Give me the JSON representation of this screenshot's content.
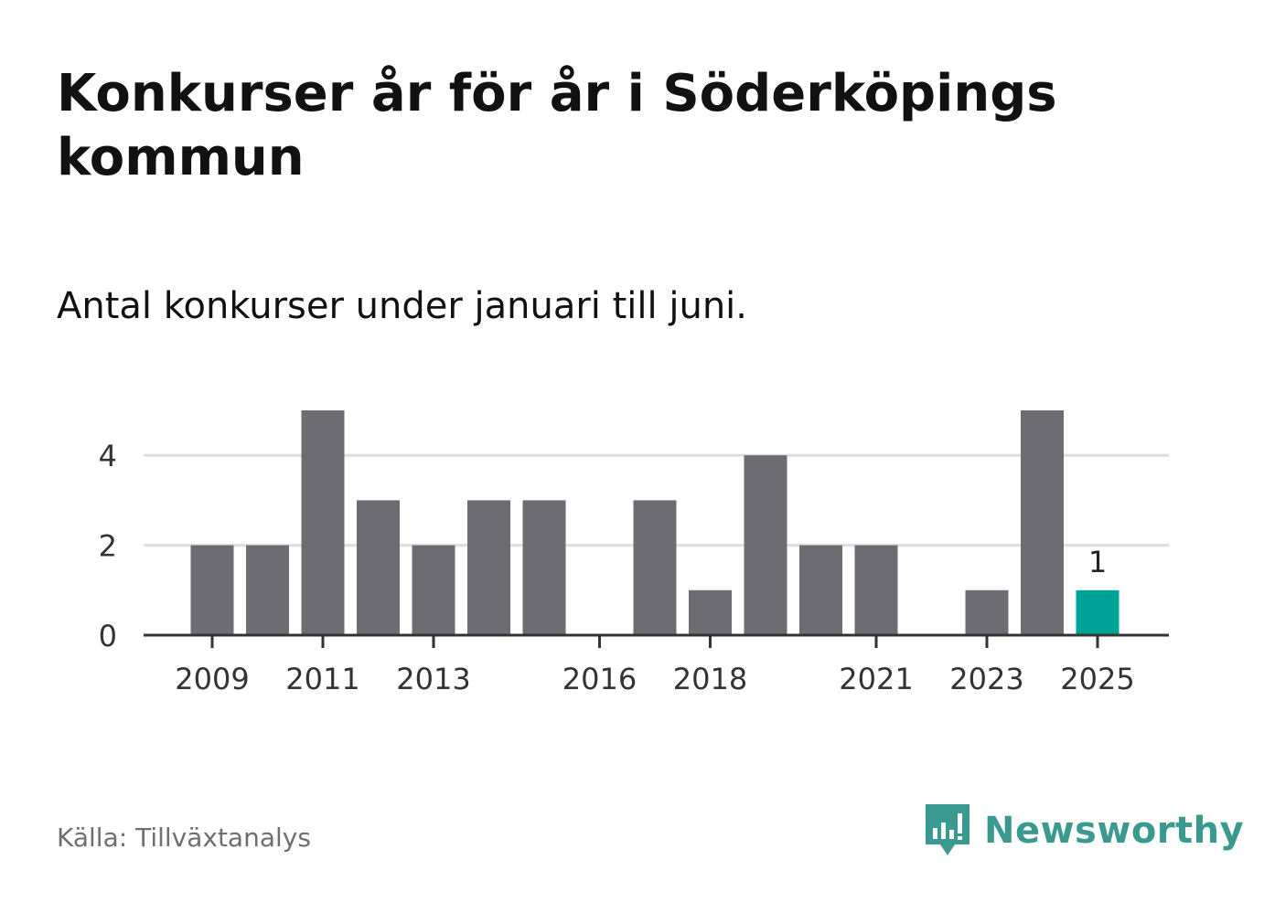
{
  "title": "Konkurser år för år i Söderköpings kommun",
  "subtitle": "Antal konkurser under januari till juni.",
  "source": "Källa: Tillväxtanalys",
  "brand": {
    "name": "Newsworthy",
    "icon": "newsworthy-logo-icon",
    "color": "#3a9a8f"
  },
  "chart_data": {
    "type": "bar",
    "categories": [
      "2009",
      "2010",
      "2011",
      "2012",
      "2013",
      "2014",
      "2015",
      "2016",
      "2017",
      "2018",
      "2019",
      "2020",
      "2021",
      "2022",
      "2023",
      "2024",
      "2025"
    ],
    "values": [
      2,
      2,
      5,
      3,
      2,
      3,
      3,
      0,
      3,
      1,
      4,
      2,
      2,
      0,
      1,
      5,
      1
    ],
    "x_tick_labels": [
      "2009",
      "2011",
      "2013",
      "2016",
      "2018",
      "2021",
      "2023",
      "2025"
    ],
    "y_ticks": [
      0,
      2,
      4
    ],
    "ylim": [
      0,
      5
    ],
    "grid": true,
    "highlight": {
      "category": "2025",
      "label": "1"
    },
    "colors": {
      "bar": "#6d6c72",
      "highlight": "#00a296",
      "grid": "#dddddd",
      "axis": "#333333"
    },
    "title": "",
    "xlabel": "",
    "ylabel": ""
  }
}
